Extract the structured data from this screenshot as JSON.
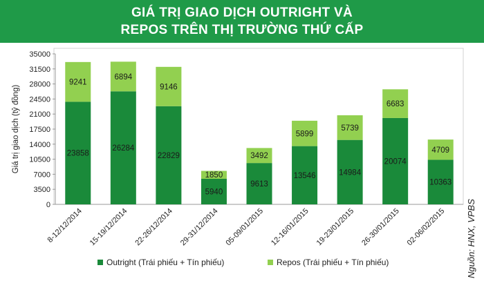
{
  "title_line1": "GIÁ TRỊ GIAO DỊCH OUTRIGHT VÀ",
  "title_line2": "REPOS TRÊN THỊ TRƯỜNG THỨ CẤP",
  "source": "Nguồn: HNX, VPBS",
  "colors": {
    "outright": "#1a8a3a",
    "repos": "#92d050",
    "banner": "#1f9a48"
  },
  "chart_data": {
    "type": "bar",
    "stacked": true,
    "ylabel": "Giá trị giao dịch (tỷ đồng)",
    "ylim": [
      0,
      35000
    ],
    "yticks": [
      0,
      3500,
      7000,
      10500,
      14000,
      17500,
      21000,
      24500,
      28000,
      31500,
      35000
    ],
    "categories": [
      "8-12/12/2014",
      "15-19/12/2014",
      "22-26/12/2014",
      "29-31/12/2014",
      "05-09/01/2015",
      "12-16/01/2015",
      "19-23/01/2015",
      "26-30/01/2015",
      "02-06/02/2015"
    ],
    "series": [
      {
        "name": "Outright (Trái phiếu + Tín phiếu)",
        "values": [
          23858,
          26284,
          22829,
          5940,
          9613,
          13546,
          14984,
          20074,
          10363
        ]
      },
      {
        "name": "Repos (Trái phiếu + Tín phiếu)",
        "values": [
          9241,
          6894,
          9146,
          1850,
          3492,
          5899,
          5739,
          6683,
          4709
        ]
      }
    ],
    "legend": "bottom",
    "grid": false
  }
}
